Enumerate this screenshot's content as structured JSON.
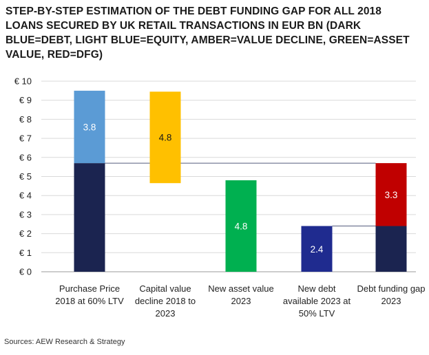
{
  "title": "STEP-BY-STEP ESTIMATION OF THE DEBT FUNDING GAP FOR ALL 2018 LOANS SECURED BY UK RETAIL TRANSACTIONS IN EUR BN (DARK BLUE=DEBT, LIGHT BLUE=EQUITY, AMBER=VALUE DECLINE, GREEN=ASSET VALUE, RED=DFG)",
  "source": "Sources: AEW Research & Strategy",
  "chart_data": {
    "type": "bar",
    "subtype": "waterfall",
    "ylim": [
      0,
      10
    ],
    "ytick_step": 1,
    "ytick_prefix": "€ ",
    "grid": true,
    "categories": [
      [
        "Purchase Price",
        "2018 at 60% LTV"
      ],
      [
        "Capital value",
        "decline 2018 to",
        "2023"
      ],
      [
        "New asset value",
        "2023"
      ],
      [
        "New debt",
        "available 2023 at",
        "50% LTV"
      ],
      [
        "Debt funding gap",
        "2023"
      ]
    ],
    "segments": [
      {
        "category": 0,
        "base": 0,
        "value": 5.7,
        "color": "#1b2450",
        "label": ""
      },
      {
        "category": 0,
        "base": 5.7,
        "value": 3.8,
        "color": "#5b9bd5",
        "label": "3.8"
      },
      {
        "category": 1,
        "base": 4.65,
        "value": 4.8,
        "color": "#ffc000",
        "label": "4.8",
        "label_dark": true
      },
      {
        "category": 2,
        "base": 0,
        "value": 4.8,
        "color": "#00b050",
        "label": "4.8"
      },
      {
        "category": 3,
        "base": 0,
        "value": 2.4,
        "color": "#1f2b8f",
        "label": "2.4"
      },
      {
        "category": 4,
        "base": 0,
        "value": 2.4,
        "color": "#1b2450",
        "label": ""
      },
      {
        "category": 4,
        "base": 2.4,
        "value": 3.3,
        "color": "#c00000",
        "label": "3.3"
      }
    ],
    "connectors": [
      {
        "from": 0,
        "to": 4,
        "y": 5.7
      },
      {
        "from": 3,
        "to": 4,
        "y": 2.4
      }
    ]
  }
}
